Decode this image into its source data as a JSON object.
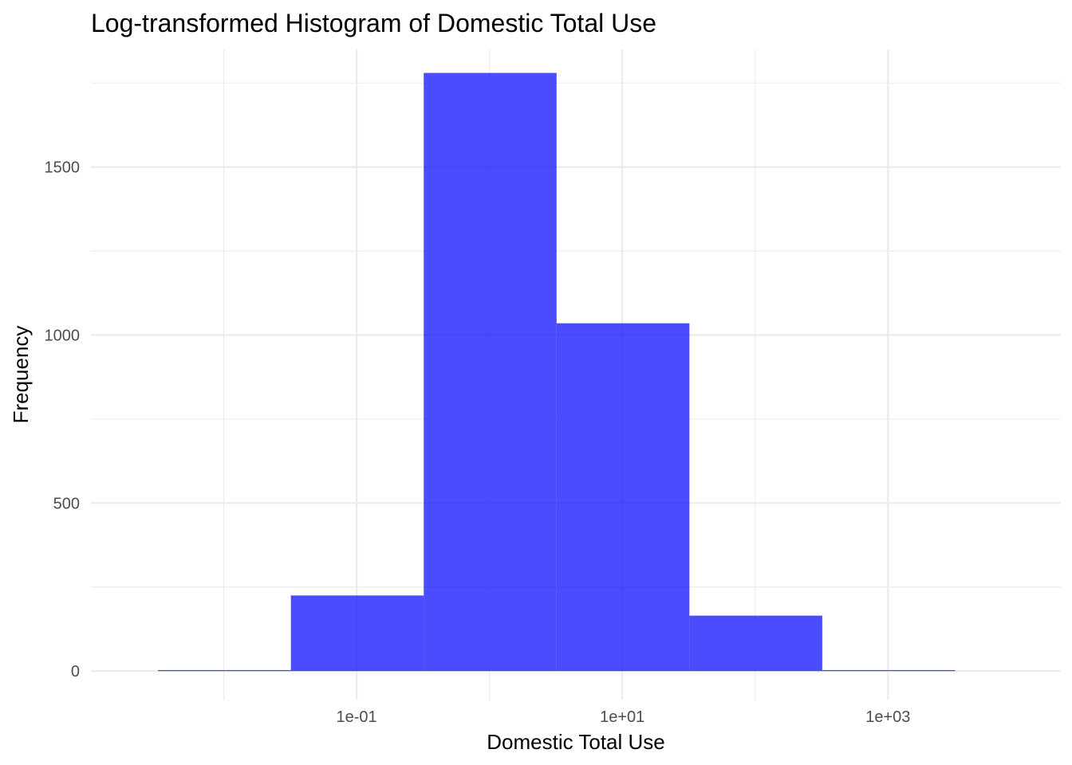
{
  "chart_data": {
    "type": "bar",
    "title": "Log-transformed Histogram of Domestic Total Use",
    "xlabel": "Domestic Total Use",
    "ylabel": "Frequency",
    "x_scale": "log10",
    "xlim": [
      0.001,
      20000
    ],
    "ylim": [
      -85,
      1850
    ],
    "x_ticks": [
      {
        "value": 0.1,
        "label": "1e-01"
      },
      {
        "value": 10,
        "label": "1e+01"
      },
      {
        "value": 1000,
        "label": "1e+03"
      }
    ],
    "x_minor_ticks": [
      0.01,
      1,
      100
    ],
    "y_ticks": [
      0,
      500,
      1000,
      1500
    ],
    "y_minor_ticks": [
      250,
      750,
      1250,
      1750
    ],
    "bins": [
      {
        "x_start": 0.0032,
        "x_end": 0.032,
        "count": 3
      },
      {
        "x_start": 0.032,
        "x_end": 0.32,
        "count": 225
      },
      {
        "x_start": 0.32,
        "x_end": 3.2,
        "count": 1780
      },
      {
        "x_start": 3.2,
        "x_end": 32,
        "count": 1035
      },
      {
        "x_start": 32,
        "x_end": 320,
        "count": 165
      },
      {
        "x_start": 320,
        "x_end": 3200,
        "count": 3
      }
    ],
    "grid": true,
    "bar_color": "#0000ff",
    "bar_opacity": 0.7,
    "background": "#ffffff"
  }
}
